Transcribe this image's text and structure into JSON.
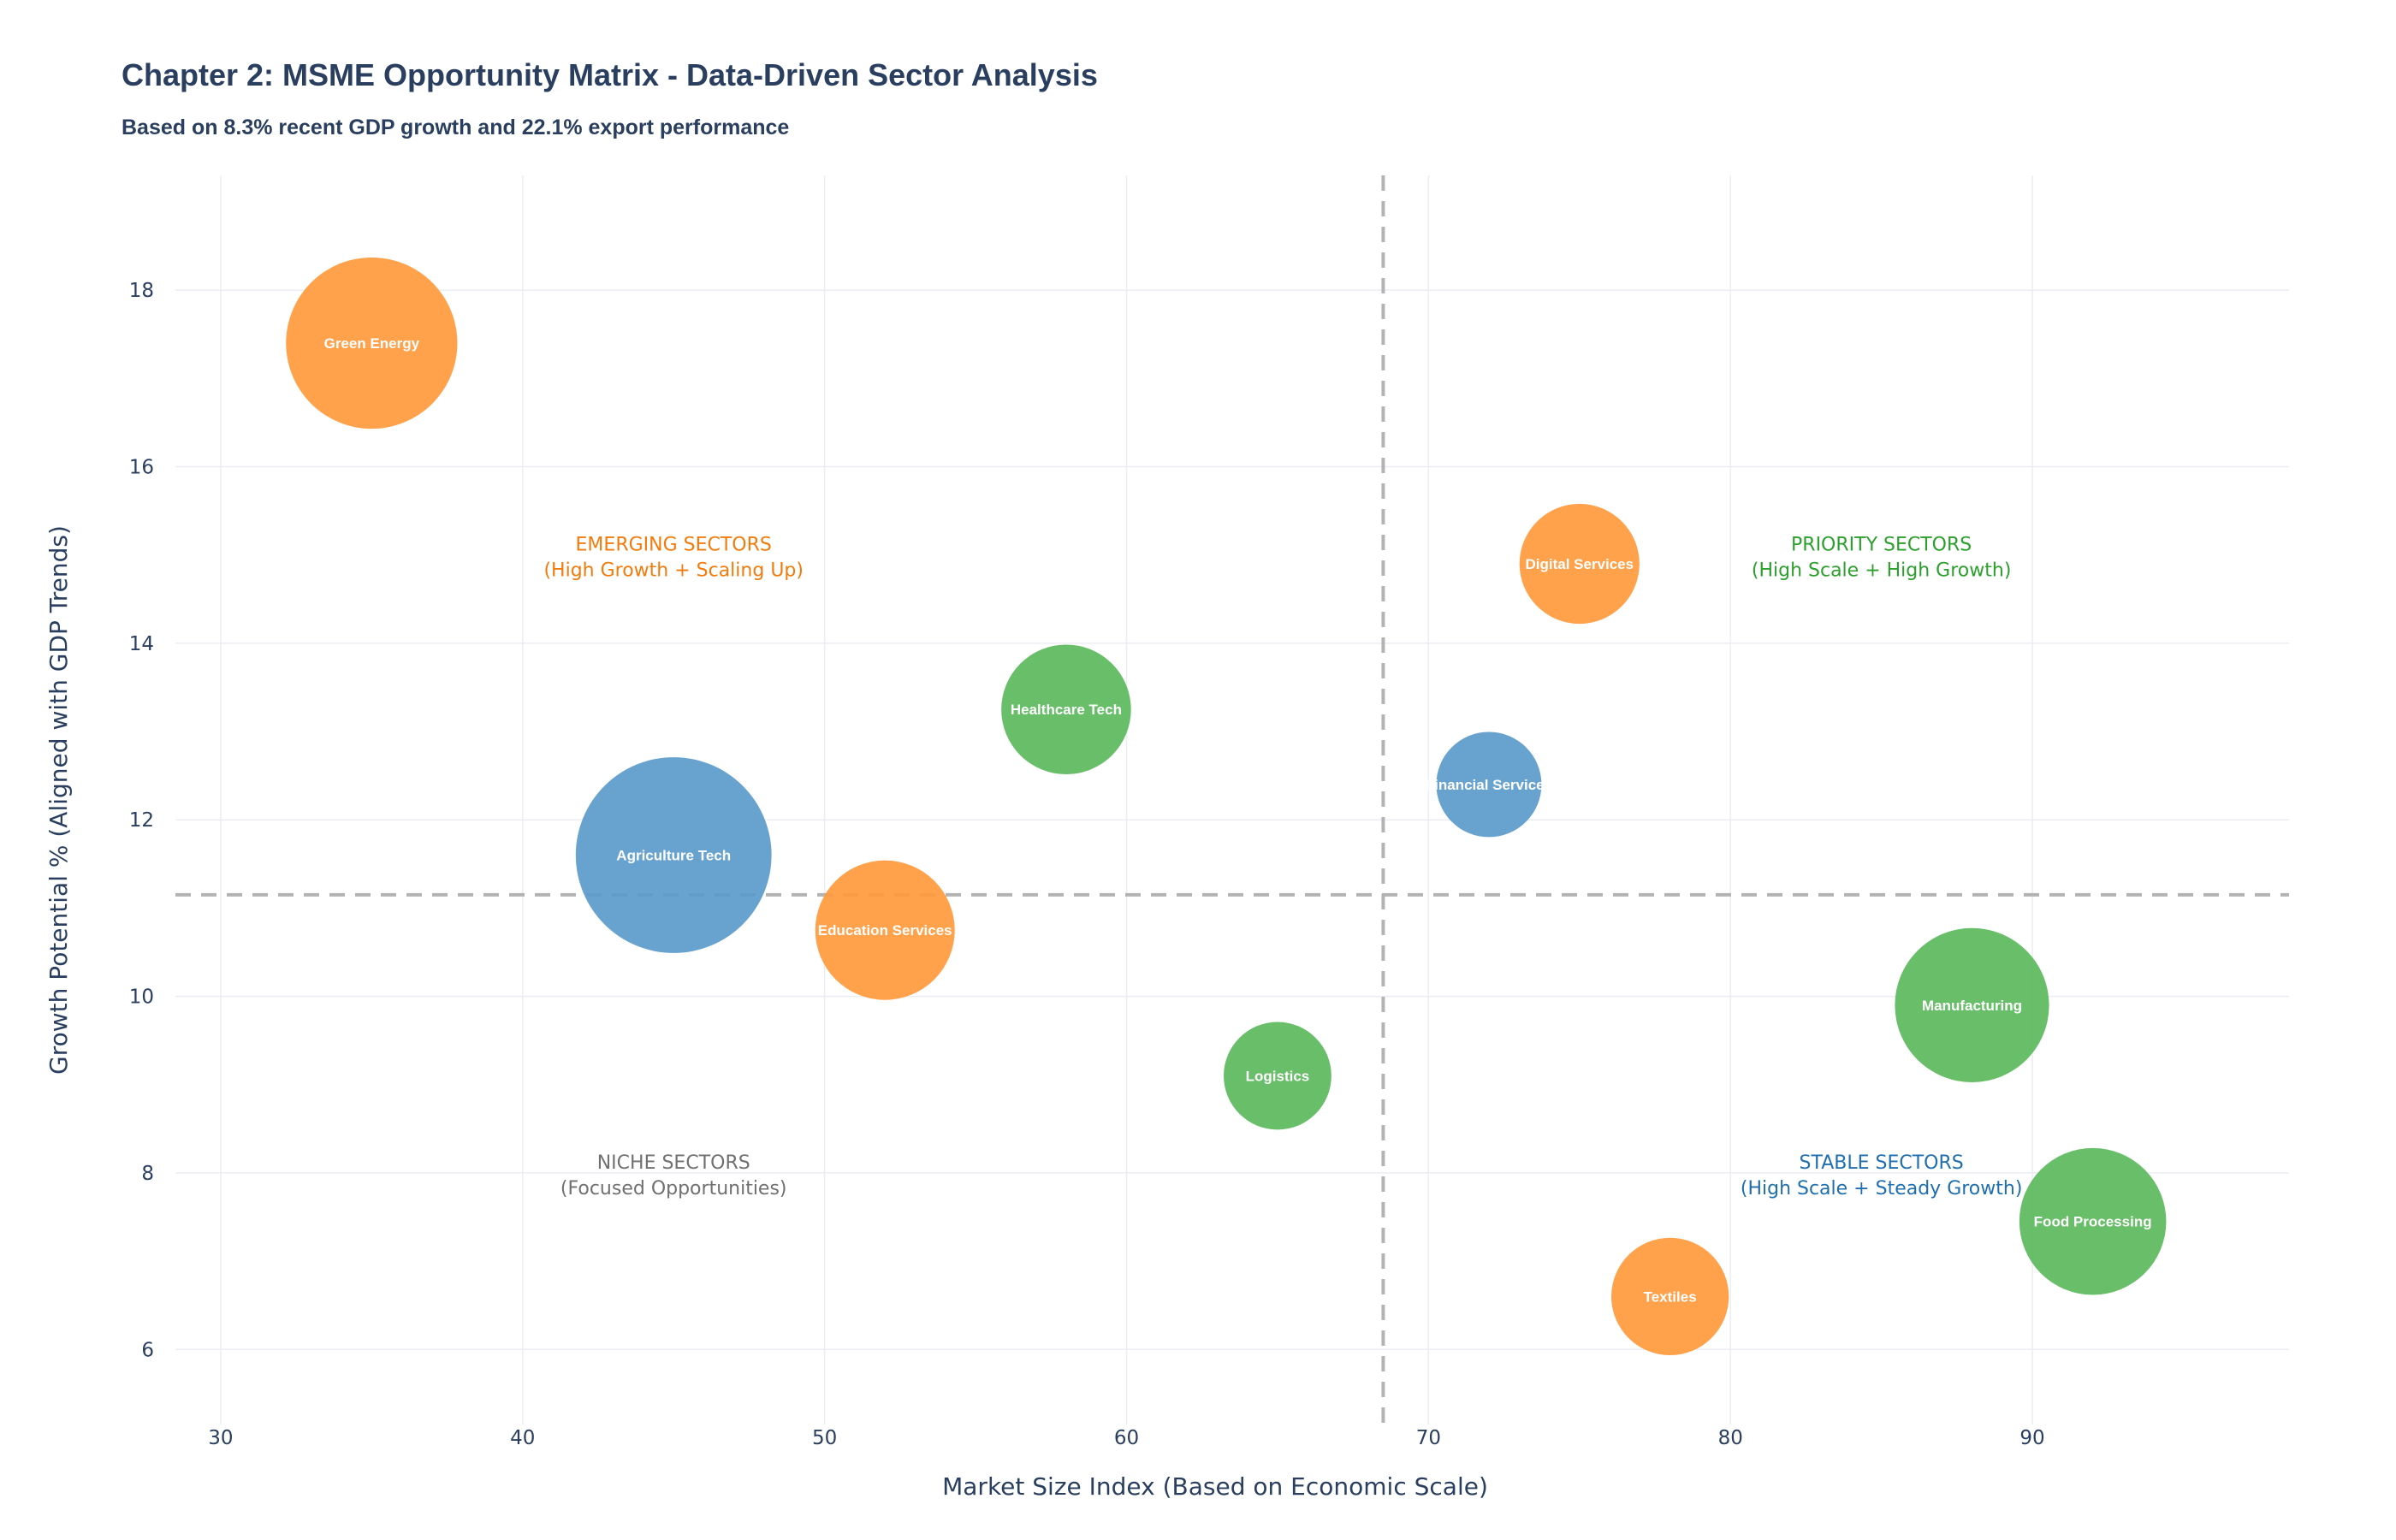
{
  "chart_data": {
    "type": "scatter",
    "title": "Chapter 2: MSME Opportunity Matrix - Data-Driven Sector Analysis",
    "subtitle": "Based on 8.3% recent GDP growth and 22.1% export performance",
    "xlabel": "Market Size Index (Based on Economic Scale)",
    "ylabel": "Growth Potential % (Aligned with GDP Trends)",
    "xlim": [
      28.5,
      98.5
    ],
    "ylim": [
      5.15,
      19.3
    ],
    "x_ticks": [
      30,
      40,
      50,
      60,
      70,
      80,
      90
    ],
    "y_ticks": [
      6,
      8,
      10,
      12,
      14,
      16,
      18
    ],
    "grid": true,
    "reference_lines": {
      "x": 68.5,
      "y": 11.15
    },
    "points": [
      {
        "label": "Green Energy",
        "x": 35,
        "y": 17.4,
        "size": 7.0,
        "color": "#ff9a3c"
      },
      {
        "label": "Agriculture Tech",
        "x": 45,
        "y": 11.6,
        "size": 8.0,
        "color": "#5b9bcb"
      },
      {
        "label": "Education Services",
        "x": 52,
        "y": 10.75,
        "size": 5.7,
        "color": "#ff9a3c"
      },
      {
        "label": "Healthcare Tech",
        "x": 58,
        "y": 13.25,
        "size": 5.3,
        "color": "#5cb85c"
      },
      {
        "label": "Logistics",
        "x": 65,
        "y": 9.1,
        "size": 4.4,
        "color": "#5cb85c"
      },
      {
        "label": "Financial Services",
        "x": 72,
        "y": 12.4,
        "size": 4.3,
        "color": "#5b9bcb"
      },
      {
        "label": "Digital Services",
        "x": 75,
        "y": 14.9,
        "size": 4.9,
        "color": "#ff9a3c"
      },
      {
        "label": "Textiles",
        "x": 78,
        "y": 6.6,
        "size": 4.8,
        "color": "#ff9a3c"
      },
      {
        "label": "Manufacturing",
        "x": 88,
        "y": 9.9,
        "size": 6.3,
        "color": "#5cb85c"
      },
      {
        "label": "Food Processing",
        "x": 92,
        "y": 7.45,
        "size": 6.0,
        "color": "#5cb85c"
      }
    ],
    "annotations": [
      {
        "line1": "EMERGING SECTORS",
        "line2": "(High Growth + Scaling Up)",
        "x": 45,
        "y": 15.0,
        "color": "#f27b0c"
      },
      {
        "line1": "PRIORITY SECTORS",
        "line2": "(High Scale + High Growth)",
        "x": 85,
        "y": 15.0,
        "color": "#2ca02c"
      },
      {
        "line1": "NICHE SECTORS",
        "line2": "(Focused Opportunities)",
        "x": 45,
        "y": 8.0,
        "color": "#707070"
      },
      {
        "line1": "STABLE SECTORS",
        "line2": "(High Scale + Steady Growth)",
        "x": 85,
        "y": 8.0,
        "color": "#1f6fb0"
      }
    ]
  }
}
